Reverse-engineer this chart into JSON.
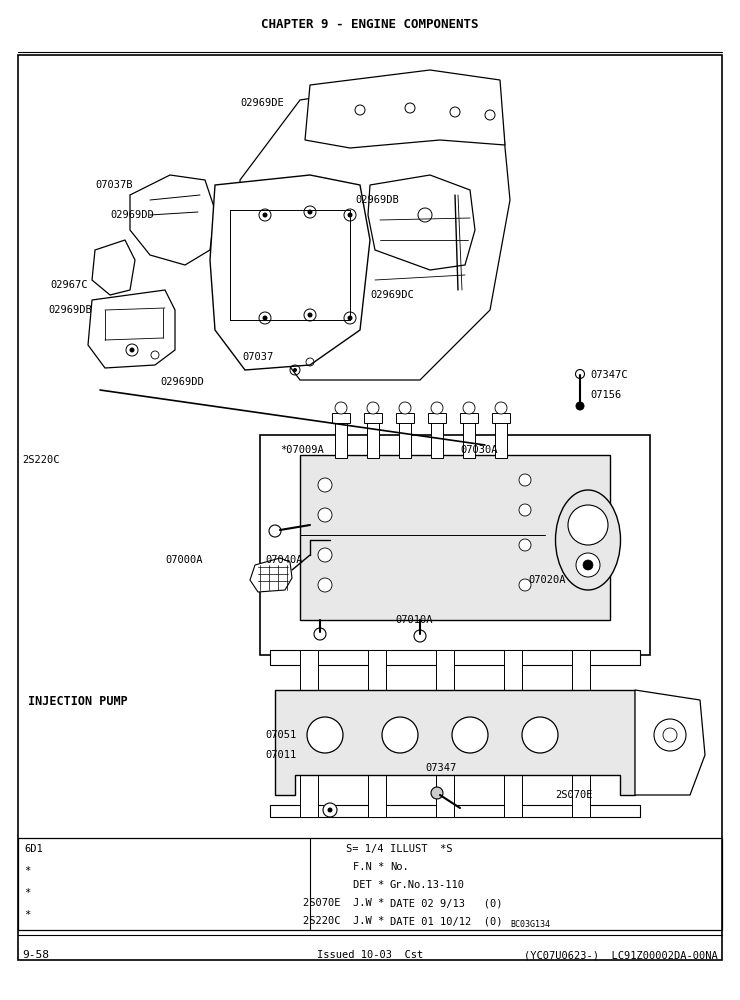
{
  "page_title": "CHAPTER 9 - ENGINE COMPONENTS",
  "page_number": "9-58",
  "footer_center": "Issued 10-03  Cst",
  "footer_right": "(YC07U0623-)  LC91Z00002DA-00NA",
  "info_left": [
    "6D1",
    "*",
    "*",
    "*"
  ],
  "info_mid1": [
    "S= 1/4",
    "F.N *",
    "DET *",
    "2S070E  J.W *",
    "2S220C  J.W *"
  ],
  "info_mid2": [
    "ILLUST  *S",
    "No.",
    "Gr.No.13-110",
    "DATE 02 9/13   (0)",
    "DATE 01 10/12  (0)"
  ],
  "info_bc": "BC03G134",
  "bg_color": "#ffffff",
  "line_color": "#000000",
  "gray_light": "#e8e8e8",
  "gray_mid": "#cccccc"
}
